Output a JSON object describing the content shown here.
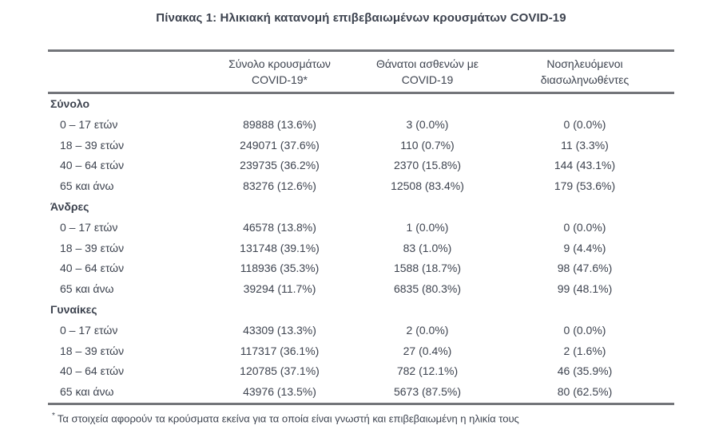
{
  "title": "Πίνακας 1: Ηλικιακή κατανομή επιβεβαιωμένων κρουσμάτων COVID-19",
  "table": {
    "columns": [
      "Σύνολο κρουσμάτων\nCOVID-19*",
      "Θάνατοι ασθενών με\nCOVID-19",
      "Νοσηλευόμενοι\nδιασωληνωθέντες"
    ],
    "sections": [
      {
        "label": "Σύνολο",
        "rows": [
          {
            "label": "0 – 17 ετών",
            "values": [
              "89888 (13.6%)",
              "3 (0.0%)",
              "0 (0.0%)"
            ]
          },
          {
            "label": "18 – 39 ετών",
            "values": [
              "249071 (37.6%)",
              "110 (0.7%)",
              "11 (3.3%)"
            ]
          },
          {
            "label": "40 – 64 ετών",
            "values": [
              "239735 (36.2%)",
              "2370 (15.8%)",
              "144 (43.1%)"
            ]
          },
          {
            "label": "65 και άνω",
            "values": [
              "83276 (12.6%)",
              "12508 (83.4%)",
              "179 (53.6%)"
            ]
          }
        ]
      },
      {
        "label": "Άνδρες",
        "rows": [
          {
            "label": "0 – 17 ετών",
            "values": [
              "46578 (13.8%)",
              "1 (0.0%)",
              "0 (0.0%)"
            ]
          },
          {
            "label": "18 – 39 ετών",
            "values": [
              "131748 (39.1%)",
              "83 (1.0%)",
              "9 (4.4%)"
            ]
          },
          {
            "label": "40 – 64 ετών",
            "values": [
              "118936 (35.3%)",
              "1588 (18.7%)",
              "98 (47.6%)"
            ]
          },
          {
            "label": "65 και άνω",
            "values": [
              "39294 (11.7%)",
              "6835 (80.3%)",
              "99 (48.1%)"
            ]
          }
        ]
      },
      {
        "label": "Γυναίκες",
        "rows": [
          {
            "label": "0 – 17 ετών",
            "values": [
              "43309 (13.3%)",
              "2 (0.0%)",
              "0 (0.0%)"
            ]
          },
          {
            "label": "18 – 39 ετών",
            "values": [
              "117317 (36.1%)",
              "27 (0.4%)",
              "2 (1.6%)"
            ]
          },
          {
            "label": "40 – 64 ετών",
            "values": [
              "120785 (37.1%)",
              "782 (12.1%)",
              "46 (35.9%)"
            ]
          },
          {
            "label": "65 και άνω",
            "values": [
              "43976 (13.5%)",
              "5673 (87.5%)",
              "80 (62.5%)"
            ]
          }
        ]
      }
    ]
  },
  "footnote": {
    "marker": "*",
    "text": "Τα στοιχεία αφορούν τα κρούσματα εκείνα για τα οποία είναι γνωστή και επιβεβαιωμένη η ηλικία τους"
  },
  "colors": {
    "text": "#3d434f",
    "rule": "#73757a",
    "background": "#ffffff"
  }
}
